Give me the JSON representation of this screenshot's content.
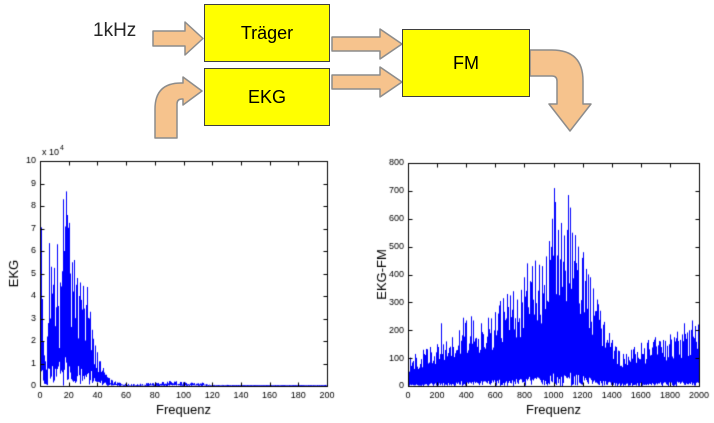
{
  "diagram": {
    "input_label": "1kHz",
    "blocks": [
      {
        "id": "traeger",
        "label": "Träger"
      },
      {
        "id": "ekg",
        "label": "EKG"
      },
      {
        "id": "fm",
        "label": "FM"
      }
    ],
    "colors": {
      "block_fill": "#ffff00",
      "block_border": "#3f3f3f",
      "arrow_fill": "#f6c38d",
      "arrow_border": "#8c8c8c",
      "text": "#000000"
    }
  },
  "chart_data": [
    {
      "type": "line",
      "style": "noisy-spectrum",
      "title": "",
      "xlabel": "Frequenz",
      "ylabel": "EKG",
      "xlim": [
        0,
        200
      ],
      "ylim": [
        0,
        10
      ],
      "y_scale_label": {
        "base": "x 10",
        "exp": "4"
      },
      "xticks": [
        0,
        20,
        40,
        60,
        80,
        100,
        120,
        140,
        160,
        180,
        200
      ],
      "yticks": [
        0,
        1,
        2,
        3,
        4,
        5,
        6,
        7,
        8,
        9,
        10
      ],
      "line_color": "#0000ff",
      "grid": false,
      "legend": null,
      "seed": 7,
      "envelope_units": "1e4",
      "envelope": [
        [
          0,
          0.3
        ],
        [
          1,
          7.05
        ],
        [
          2,
          2.0
        ],
        [
          3,
          1.2
        ],
        [
          5,
          2.2
        ],
        [
          6,
          6.35
        ],
        [
          7,
          3.0
        ],
        [
          8,
          5.3
        ],
        [
          9,
          4.5
        ],
        [
          10,
          5.25
        ],
        [
          11,
          3.5
        ],
        [
          12,
          6.3
        ],
        [
          14,
          4.6
        ],
        [
          15,
          5.1
        ],
        [
          16,
          8.3
        ],
        [
          17,
          6.0
        ],
        [
          18,
          8.65
        ],
        [
          19,
          7.6
        ],
        [
          20,
          7.25
        ],
        [
          21,
          5.0
        ],
        [
          22,
          5.5
        ],
        [
          23,
          4.2
        ],
        [
          24,
          5.6
        ],
        [
          25,
          4.5
        ],
        [
          26,
          4.8
        ],
        [
          27,
          4.0
        ],
        [
          28,
          4.6
        ],
        [
          29,
          3.4
        ],
        [
          30,
          4.45
        ],
        [
          31,
          3.1
        ],
        [
          32,
          3.6
        ],
        [
          33,
          4.4
        ],
        [
          34,
          3.0
        ],
        [
          35,
          3.3
        ],
        [
          36,
          2.5
        ],
        [
          37,
          2.1
        ],
        [
          38,
          1.8
        ],
        [
          40,
          1.5
        ],
        [
          42,
          1.1
        ],
        [
          44,
          0.8
        ],
        [
          46,
          0.5
        ],
        [
          48,
          0.35
        ],
        [
          50,
          0.25
        ],
        [
          55,
          0.15
        ],
        [
          60,
          0.1
        ],
        [
          65,
          0.08
        ],
        [
          70,
          0.1
        ],
        [
          75,
          0.13
        ],
        [
          80,
          0.16
        ],
        [
          85,
          0.18
        ],
        [
          90,
          0.22
        ],
        [
          95,
          0.2
        ],
        [
          100,
          0.18
        ],
        [
          105,
          0.15
        ],
        [
          110,
          0.12
        ],
        [
          113,
          0.15
        ],
        [
          116,
          0.08
        ],
        [
          120,
          0.05
        ],
        [
          130,
          0.05
        ],
        [
          140,
          0.04
        ],
        [
          160,
          0.04
        ],
        [
          180,
          0.04
        ],
        [
          200,
          0.05
        ]
      ]
    },
    {
      "type": "line",
      "style": "noisy-spectrum",
      "title": "",
      "xlabel": "Frequenz",
      "ylabel": "EKG-FM",
      "xlim": [
        0,
        2000
      ],
      "ylim": [
        0,
        800
      ],
      "y_scale_label": null,
      "xticks": [
        0,
        200,
        400,
        600,
        800,
        1000,
        1200,
        1400,
        1600,
        1800,
        2000
      ],
      "yticks": [
        0,
        100,
        200,
        300,
        400,
        500,
        600,
        700,
        800
      ],
      "line_color": "#0000ff",
      "grid": false,
      "legend": null,
      "seed": 12,
      "envelope_units": "1",
      "envelope": [
        [
          0,
          100
        ],
        [
          50,
          115
        ],
        [
          100,
          130
        ],
        [
          150,
          140
        ],
        [
          200,
          150
        ],
        [
          230,
          225
        ],
        [
          260,
          160
        ],
        [
          300,
          175
        ],
        [
          350,
          200
        ],
        [
          380,
          245
        ],
        [
          400,
          235
        ],
        [
          430,
          250
        ],
        [
          450,
          235
        ],
        [
          500,
          225
        ],
        [
          550,
          245
        ],
        [
          600,
          265
        ],
        [
          630,
          305
        ],
        [
          650,
          315
        ],
        [
          680,
          330
        ],
        [
          700,
          325
        ],
        [
          720,
          340
        ],
        [
          750,
          310
        ],
        [
          780,
          345
        ],
        [
          800,
          390
        ],
        [
          820,
          440
        ],
        [
          850,
          430
        ],
        [
          870,
          450
        ],
        [
          900,
          435
        ],
        [
          920,
          430
        ],
        [
          950,
          465
        ],
        [
          970,
          520
        ],
        [
          990,
          600
        ],
        [
          1000,
          710
        ],
        [
          1010,
          660
        ],
        [
          1030,
          560
        ],
        [
          1050,
          585
        ],
        [
          1070,
          540
        ],
        [
          1090,
          560
        ],
        [
          1100,
          685
        ],
        [
          1110,
          640
        ],
        [
          1130,
          550
        ],
        [
          1150,
          540
        ],
        [
          1170,
          500
        ],
        [
          1200,
          480
        ],
        [
          1220,
          420
        ],
        [
          1250,
          390
        ],
        [
          1270,
          350
        ],
        [
          1300,
          310
        ],
        [
          1320,
          270
        ],
        [
          1350,
          230
        ],
        [
          1380,
          190
        ],
        [
          1400,
          165
        ],
        [
          1430,
          140
        ],
        [
          1450,
          125
        ],
        [
          1480,
          115
        ],
        [
          1500,
          115
        ],
        [
          1530,
          130
        ],
        [
          1550,
          140
        ],
        [
          1600,
          155
        ],
        [
          1650,
          165
        ],
        [
          1700,
          175
        ],
        [
          1730,
          160
        ],
        [
          1750,
          165
        ],
        [
          1800,
          185
        ],
        [
          1830,
          175
        ],
        [
          1850,
          195
        ],
        [
          1880,
          185
        ],
        [
          1900,
          225
        ],
        [
          1930,
          200
        ],
        [
          1950,
          235
        ],
        [
          1970,
          215
        ],
        [
          2000,
          235
        ]
      ]
    }
  ]
}
